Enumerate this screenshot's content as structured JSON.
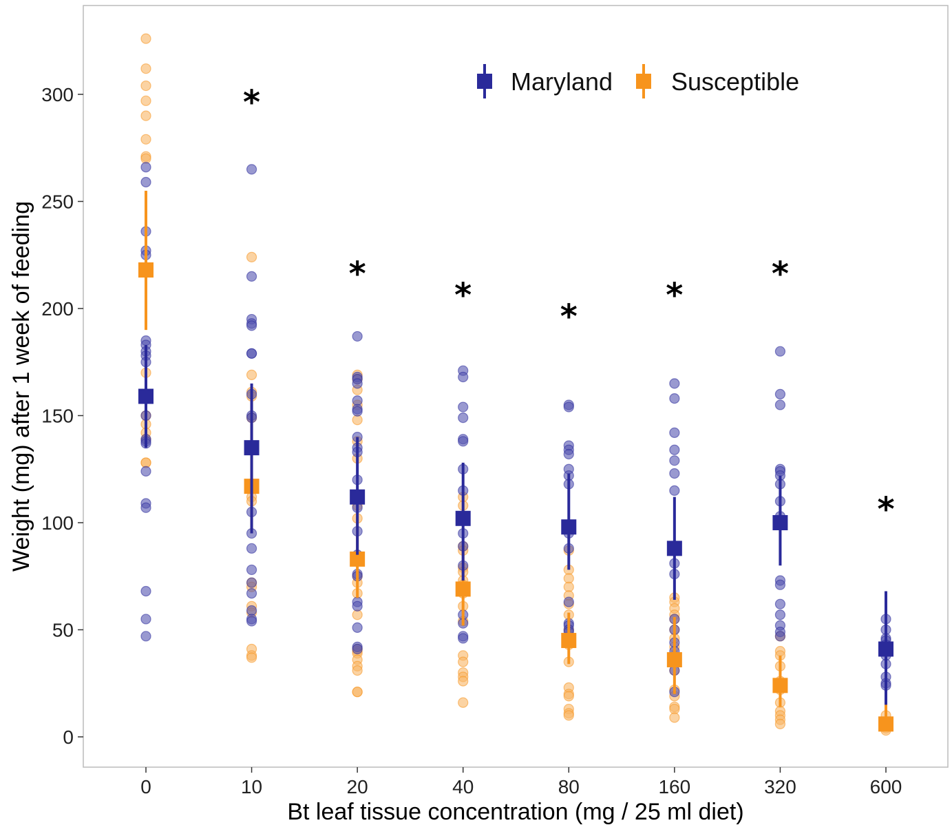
{
  "chart_data": {
    "type": "scatter",
    "xlabel": "Bt leaf tissue concentration (mg / 25 ml diet)",
    "ylabel": "Weight (mg) after 1 week of feeding",
    "categories": [
      "0",
      "10",
      "20",
      "40",
      "80",
      "160",
      "320",
      "600"
    ],
    "yticks": [
      0,
      50,
      100,
      150,
      200,
      250,
      300
    ],
    "ylim": [
      -13,
      342
    ],
    "grid": false,
    "legend_position": "top-right",
    "significance_marker": "*",
    "significant_categories": [
      "10",
      "20",
      "40",
      "80",
      "160",
      "320",
      "600"
    ],
    "series": [
      {
        "name": "Maryland",
        "color": "#2a2a9a",
        "point_color": "#5555b0",
        "mean": [
          159,
          135,
          112,
          102,
          98,
          88,
          100,
          41
        ],
        "error_low": [
          135,
          95,
          85,
          73,
          78,
          64,
          80,
          15
        ],
        "error_high": [
          183,
          165,
          140,
          128,
          123,
          112,
          122,
          68
        ],
        "points": [
          [
            266,
            259,
            236,
            227,
            225,
            185,
            183,
            180,
            178,
            175,
            150,
            139,
            138,
            137,
            124,
            109,
            107,
            68,
            55,
            47
          ],
          [
            265,
            215,
            195,
            193,
            192,
            179,
            179,
            160,
            150,
            149,
            105,
            95,
            88,
            78,
            72,
            67,
            59,
            55,
            54
          ],
          [
            187,
            168,
            167,
            165,
            157,
            153,
            152,
            140,
            135,
            133,
            120,
            107,
            96,
            85,
            76,
            75,
            63,
            61,
            51,
            42,
            41
          ],
          [
            171,
            168,
            154,
            149,
            139,
            138,
            125,
            115,
            95,
            89,
            80,
            68,
            57,
            53,
            47,
            46
          ],
          [
            155,
            154,
            136,
            134,
            132,
            125,
            122,
            118,
            95,
            88,
            63,
            53,
            52,
            50,
            49
          ],
          [
            165,
            158,
            142,
            134,
            129,
            123,
            115,
            81,
            76,
            55,
            50,
            44,
            40,
            36,
            31,
            21
          ],
          [
            180,
            160,
            155,
            125,
            124,
            122,
            118,
            110,
            103,
            73,
            71,
            62,
            57,
            52,
            49,
            47
          ],
          [
            55,
            50,
            46,
            45,
            43,
            38,
            34,
            28,
            25,
            24
          ]
        ]
      },
      {
        "name": "Susceptible",
        "color": "#f7941d",
        "point_color": "#f9b566",
        "mean": [
          218,
          117,
          83,
          69,
          45,
          36,
          24,
          6
        ],
        "error_low": [
          190,
          95,
          65,
          52,
          34,
          20,
          14,
          3
        ],
        "error_high": [
          255,
          160,
          103,
          90,
          58,
          56,
          38,
          22
        ],
        "points": [
          [
            326,
            312,
            304,
            297,
            290,
            279,
            271,
            270,
            170,
            150,
            146,
            142,
            139,
            128,
            128
          ],
          [
            224,
            169,
            161,
            159,
            149,
            112,
            110,
            72,
            70,
            61,
            58,
            41,
            38,
            37
          ],
          [
            169,
            167,
            162,
            155,
            148,
            138,
            130,
            108,
            102,
            75,
            72,
            67,
            57,
            41,
            40,
            39,
            36,
            33,
            31,
            21,
            21
          ],
          [
            112,
            108,
            89,
            87,
            79,
            77,
            73,
            71,
            67,
            61,
            54,
            38,
            35,
            30,
            28,
            26,
            16
          ],
          [
            87,
            78,
            74,
            70,
            66,
            62,
            57,
            50,
            47,
            43,
            35,
            23,
            20,
            19,
            13,
            11,
            10
          ],
          [
            65,
            63,
            60,
            57,
            55,
            50,
            46,
            42,
            38,
            31,
            22,
            19,
            14,
            13,
            9
          ],
          [
            47,
            40,
            38,
            33,
            26,
            22,
            16,
            12,
            10,
            8,
            6
          ],
          [
            10,
            7,
            6,
            5,
            4,
            3
          ]
        ]
      }
    ]
  }
}
